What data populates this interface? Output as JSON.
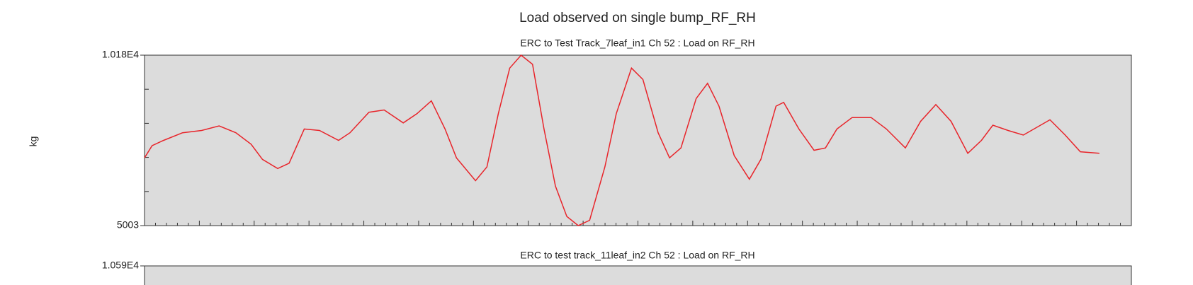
{
  "chart_data": [
    {
      "type": "line",
      "title": "Load observed on single bump_RF_RH",
      "subtitle": "ERC to Test Track_7leaf_in1  Ch 52 : Load on RF_RH",
      "ylabel": "kg",
      "x": [
        0,
        10,
        25,
        50,
        75,
        98,
        120,
        140,
        155,
        175,
        190,
        210,
        230,
        255,
        270,
        295,
        315,
        340,
        358,
        377,
        395,
        410,
        435,
        450,
        465,
        480,
        495,
        510,
        525,
        540,
        555,
        570,
        585,
        605,
        620,
        640,
        655,
        675,
        690,
        705,
        725,
        740,
        755,
        775,
        795,
        810,
        830,
        840,
        860,
        880,
        895,
        910,
        930,
        955,
        975,
        1000,
        1020,
        1040,
        1060,
        1082,
        1100,
        1115,
        1135,
        1155,
        1190,
        1210,
        1230,
        1255
      ],
      "series": [
        {
          "color": "#e8242a",
          "values": [
            7060,
            7430,
            7592,
            7823,
            7892,
            8031,
            7823,
            7476,
            7014,
            6737,
            6898,
            7938,
            7892,
            7592,
            7823,
            8447,
            8516,
            8123,
            8401,
            8793,
            7938,
            7060,
            6367,
            6783,
            8401,
            9787,
            10180,
            9903,
            7938,
            6205,
            5281,
            5003,
            5165,
            6783,
            8401,
            9787,
            9440,
            7823,
            7060,
            7361,
            8863,
            9325,
            8632,
            7129,
            6413,
            7014,
            8632,
            8747,
            7938,
            7291,
            7361,
            7938,
            8285,
            8285,
            7938,
            7361,
            8169,
            8678,
            8169,
            7199,
            7592,
            8054,
            7892,
            7753,
            8216,
            7753,
            7245,
            7199
          ]
        }
      ],
      "xlim": [
        0,
        1297
      ],
      "ylim": [
        5003,
        10180
      ],
      "yticks": [
        5003,
        {
          "value": 10180,
          "label": "1.018E4"
        }
      ]
    },
    {
      "type": "line",
      "subtitle": "ERC to test track_11leaf_in2  Ch 52 : Load on RF_RH",
      "yticks": [
        {
          "value": 10590,
          "label": "1.059E4"
        }
      ]
    }
  ]
}
